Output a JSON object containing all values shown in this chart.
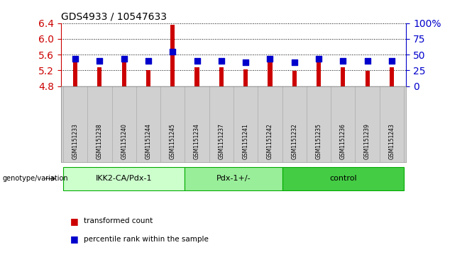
{
  "title": "GDS4933 / 10547633",
  "samples": [
    "GSM1151233",
    "GSM1151238",
    "GSM1151240",
    "GSM1151244",
    "GSM1151245",
    "GSM1151234",
    "GSM1151237",
    "GSM1151241",
    "GSM1151242",
    "GSM1151232",
    "GSM1151235",
    "GSM1151236",
    "GSM1151239",
    "GSM1151243"
  ],
  "transformed_counts": [
    5.52,
    5.27,
    5.5,
    5.21,
    6.35,
    5.28,
    5.28,
    5.22,
    5.55,
    5.18,
    5.49,
    5.27,
    5.19,
    5.27
  ],
  "percentile_ranks": [
    43,
    40,
    43,
    40,
    55,
    40,
    40,
    38,
    43,
    38,
    43,
    40,
    40,
    40
  ],
  "groups": [
    {
      "label": "IKK2-CA/Pdx-1",
      "start": 0,
      "end": 5
    },
    {
      "label": "Pdx-1+/-",
      "start": 5,
      "end": 9
    },
    {
      "label": "control",
      "start": 9,
      "end": 14
    }
  ],
  "group_face_colors": [
    "#ccffcc",
    "#99ee99",
    "#44cc44"
  ],
  "group_edge_color": "#00aa00",
  "ylim_left": [
    4.8,
    6.4
  ],
  "ylim_right": [
    0,
    100
  ],
  "y_ticks_left": [
    4.8,
    5.2,
    5.6,
    6.0,
    6.4
  ],
  "y_ticks_right": [
    0,
    25,
    50,
    75,
    100
  ],
  "bar_color": "#cc0000",
  "dot_color": "#0000cc",
  "bar_width": 0.18,
  "dot_size": 28,
  "grid_color": "#000000",
  "left_tick_color": "#cc0000",
  "right_tick_color": "#0000cc",
  "xlabel_group_row": "genotype/variation",
  "legend_items": [
    "transformed count",
    "percentile rank within the sample"
  ],
  "title_fontsize": 10,
  "sample_fontsize": 5.5,
  "group_fontsize": 8,
  "legend_fontsize": 7.5,
  "genotype_label_fontsize": 7
}
